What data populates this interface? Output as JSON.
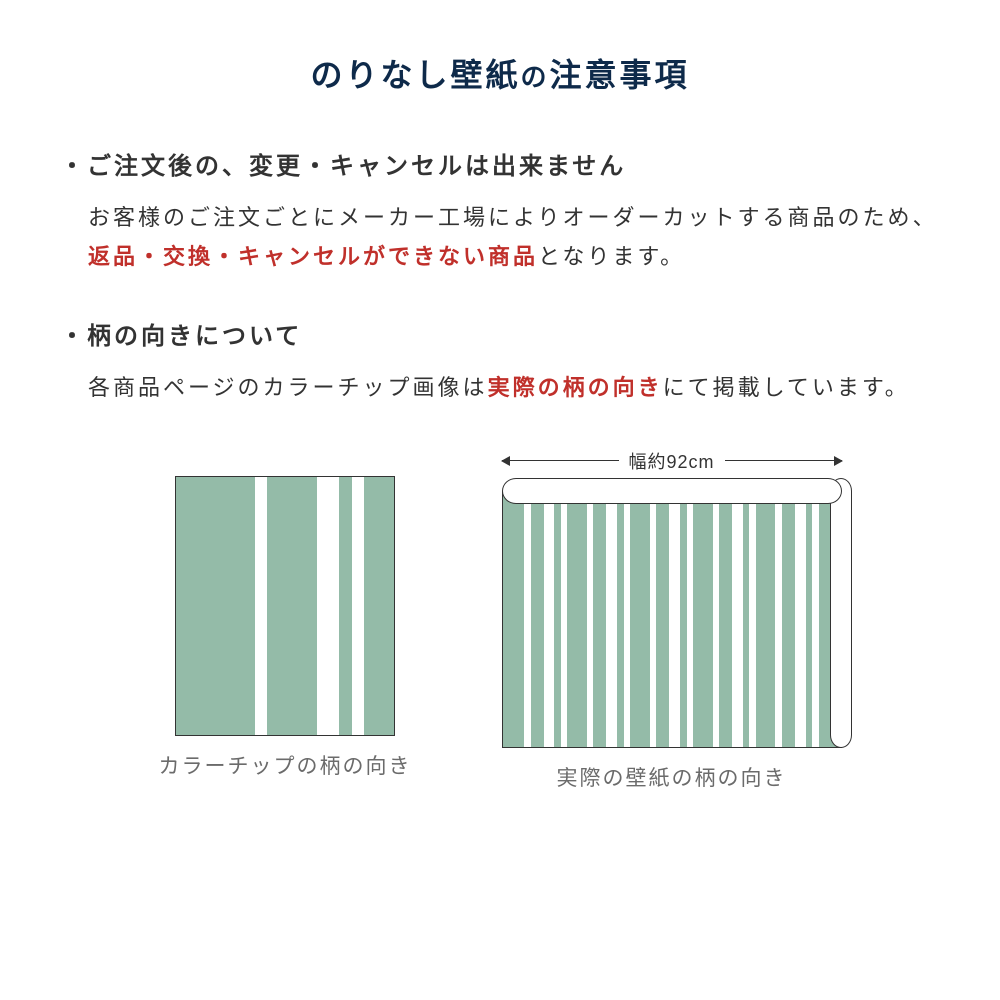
{
  "colors": {
    "title": "#0e2a4a",
    "body": "#333333",
    "highlight": "#c0302b",
    "caption": "#6b6b6b",
    "sage": "#94bba8",
    "white": "#ffffff",
    "line": "#333333"
  },
  "title": {
    "pre": "のりなし壁紙",
    "small": "の",
    "post": "注意事項"
  },
  "section1": {
    "heading": "・ご注文後の、変更・キャンセルは出来ません",
    "body_pre": "お客様のご注文ごとにメーカー工場によりオーダーカットする商品のため、",
    "body_highlight": "返品・交換・キャンセルができない商品",
    "body_post": "となります。"
  },
  "section2": {
    "heading": "・柄の向きについて",
    "body_pre": "各商品ページのカラーチップ画像は",
    "body_highlight": "実際の柄の向き",
    "body_post": "にて掲載しています。"
  },
  "diagrams": {
    "left_caption": "カラーチップの柄の向き",
    "right_caption": "実際の壁紙の柄の向き",
    "width_label": "幅約92cm",
    "left_bands": [
      {
        "color": "sage",
        "w": 80
      },
      {
        "color": "white",
        "w": 12
      },
      {
        "color": "sage",
        "w": 50
      },
      {
        "color": "white",
        "w": 22
      },
      {
        "color": "sage",
        "w": 14
      },
      {
        "color": "white",
        "w": 12
      },
      {
        "color": "sage",
        "w": 30
      }
    ],
    "right_stripes": [
      {
        "color": "sage",
        "w": 20
      },
      {
        "color": "white",
        "w": 6
      },
      {
        "color": "sage",
        "w": 12
      },
      {
        "color": "white",
        "w": 10
      },
      {
        "color": "sage",
        "w": 6
      },
      {
        "color": "white",
        "w": 6
      },
      {
        "color": "sage",
        "w": 18
      },
      {
        "color": "white",
        "w": 6
      },
      {
        "color": "sage",
        "w": 12
      },
      {
        "color": "white",
        "w": 10
      },
      {
        "color": "sage",
        "w": 6
      },
      {
        "color": "white",
        "w": 6
      },
      {
        "color": "sage",
        "w": 18
      },
      {
        "color": "white",
        "w": 6
      },
      {
        "color": "sage",
        "w": 12
      },
      {
        "color": "white",
        "w": 10
      },
      {
        "color": "sage",
        "w": 6
      },
      {
        "color": "white",
        "w": 6
      },
      {
        "color": "sage",
        "w": 18
      },
      {
        "color": "white",
        "w": 6
      },
      {
        "color": "sage",
        "w": 12
      },
      {
        "color": "white",
        "w": 10
      },
      {
        "color": "sage",
        "w": 6
      },
      {
        "color": "white",
        "w": 6
      },
      {
        "color": "sage",
        "w": 18
      },
      {
        "color": "white",
        "w": 6
      },
      {
        "color": "sage",
        "w": 12
      },
      {
        "color": "white",
        "w": 10
      },
      {
        "color": "sage",
        "w": 6
      },
      {
        "color": "white",
        "w": 6
      },
      {
        "color": "sage",
        "w": 20
      }
    ]
  }
}
